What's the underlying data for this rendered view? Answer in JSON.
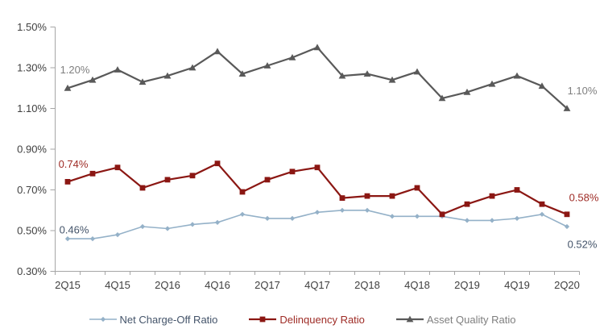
{
  "chart": {
    "background": "#FFFFFF",
    "axis_color": "#A6A6A6",
    "axis_label_color": "#404040"
  },
  "chart_data": {
    "type": "line",
    "title": "",
    "xlabel": "",
    "ylabel": "",
    "grid": false,
    "legend_position": "bottom",
    "x": [
      "2Q15",
      "3Q15",
      "4Q15",
      "1Q16",
      "2Q16",
      "3Q16",
      "4Q16",
      "1Q17",
      "2Q17",
      "3Q17",
      "4Q17",
      "1Q18",
      "2Q18",
      "3Q18",
      "4Q18",
      "1Q19",
      "2Q19",
      "3Q19",
      "4Q19",
      "1Q20",
      "2Q20"
    ],
    "x_axis_tick_labels": [
      "2Q15",
      "4Q15",
      "2Q16",
      "4Q16",
      "2Q17",
      "4Q17",
      "2Q18",
      "4Q18",
      "2Q19",
      "4Q19",
      "2Q20"
    ],
    "y_axis": {
      "min": 0.3,
      "max": 1.5,
      "step": 0.2,
      "unit": "%",
      "tick_labels": [
        "1.50%",
        "1.30%",
        "1.10%",
        "0.90%",
        "0.70%",
        "0.50%",
        "0.30%"
      ]
    },
    "series": [
      {
        "name": "Net Charge-Off Ratio",
        "marker": "diamond",
        "line_color": "#94B1C8",
        "label_color": "#44546A",
        "values": [
          0.46,
          0.46,
          0.48,
          0.52,
          0.51,
          0.53,
          0.54,
          0.58,
          0.56,
          0.56,
          0.59,
          0.6,
          0.6,
          0.57,
          0.57,
          0.57,
          0.55,
          0.55,
          0.56,
          0.58,
          0.52
        ]
      },
      {
        "name": "Delinquency Ratio",
        "marker": "square",
        "line_color": "#8B1713",
        "label_color": "#9E2B25",
        "values": [
          0.74,
          0.78,
          0.81,
          0.71,
          0.75,
          0.77,
          0.83,
          0.69,
          0.75,
          0.79,
          0.81,
          0.66,
          0.67,
          0.67,
          0.71,
          0.58,
          0.63,
          0.67,
          0.7,
          0.63,
          0.58
        ]
      },
      {
        "name": "Asset Quality Ratio",
        "marker": "triangle",
        "line_color": "#595959",
        "label_color": "#7F7F7F",
        "values": [
          1.2,
          1.24,
          1.29,
          1.23,
          1.26,
          1.3,
          1.38,
          1.27,
          1.31,
          1.35,
          1.4,
          1.26,
          1.27,
          1.24,
          1.28,
          1.15,
          1.18,
          1.22,
          1.26,
          1.21,
          1.1
        ]
      }
    ],
    "annotations": [
      {
        "text": "1.20%",
        "series": "Asset Quality Ratio",
        "point": "first",
        "color": "#7F7F7F"
      },
      {
        "text": "1.10%",
        "series": "Asset Quality Ratio",
        "point": "last",
        "color": "#7F7F7F"
      },
      {
        "text": "0.74%",
        "series": "Delinquency Ratio",
        "point": "first",
        "color": "#9E2B25"
      },
      {
        "text": "0.58%",
        "series": "Delinquency Ratio",
        "point": "last",
        "color": "#9E2B25"
      },
      {
        "text": "0.46%",
        "series": "Net Charge-Off Ratio",
        "point": "first",
        "color": "#44546A"
      },
      {
        "text": "0.52%",
        "series": "Net Charge-Off Ratio",
        "point": "last",
        "color": "#44546A"
      }
    ]
  }
}
